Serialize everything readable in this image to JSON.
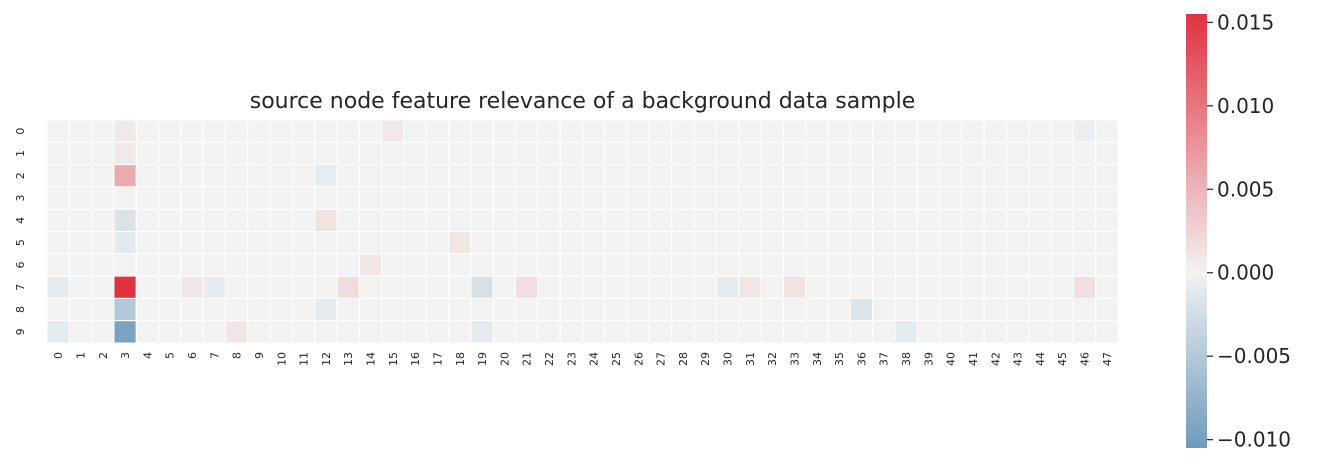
{
  "chart_data": {
    "type": "heatmap",
    "title": "source node feature relevance of a background data sample",
    "xlabel": "",
    "ylabel": "",
    "rows": [
      "0",
      "1",
      "2",
      "3",
      "4",
      "5",
      "6",
      "7",
      "8",
      "9"
    ],
    "columns": [
      "0",
      "1",
      "2",
      "3",
      "4",
      "5",
      "6",
      "7",
      "8",
      "9",
      "10",
      "11",
      "12",
      "13",
      "14",
      "15",
      "16",
      "17",
      "18",
      "19",
      "20",
      "21",
      "22",
      "23",
      "24",
      "25",
      "26",
      "27",
      "28",
      "29",
      "30",
      "31",
      "32",
      "33",
      "34",
      "35",
      "36",
      "37",
      "38",
      "39",
      "40",
      "41",
      "42",
      "43",
      "44",
      "45",
      "46",
      "47"
    ],
    "cells": [
      {
        "row": 0,
        "col": 3,
        "value": 0.0008
      },
      {
        "row": 0,
        "col": 15,
        "value": 0.0008
      },
      {
        "row": 0,
        "col": 46,
        "value": -0.0005
      },
      {
        "row": 1,
        "col": 3,
        "value": 0.0008
      },
      {
        "row": 2,
        "col": 3,
        "value": 0.0058
      },
      {
        "row": 2,
        "col": 12,
        "value": -0.0007
      },
      {
        "row": 4,
        "col": 3,
        "value": -0.0018
      },
      {
        "row": 4,
        "col": 12,
        "value": 0.0012
      },
      {
        "row": 5,
        "col": 3,
        "value": -0.0011
      },
      {
        "row": 5,
        "col": 18,
        "value": 0.001
      },
      {
        "row": 6,
        "col": 14,
        "value": 0.001
      },
      {
        "row": 7,
        "col": 0,
        "value": -0.0008
      },
      {
        "row": 7,
        "col": 3,
        "value": 0.0155
      },
      {
        "row": 7,
        "col": 6,
        "value": 0.001
      },
      {
        "row": 7,
        "col": 7,
        "value": -0.0008
      },
      {
        "row": 7,
        "col": 13,
        "value": 0.0018
      },
      {
        "row": 7,
        "col": 19,
        "value": -0.0022
      },
      {
        "row": 7,
        "col": 21,
        "value": 0.0016
      },
      {
        "row": 7,
        "col": 30,
        "value": -0.0008
      },
      {
        "row": 7,
        "col": 31,
        "value": 0.001
      },
      {
        "row": 7,
        "col": 33,
        "value": 0.0012
      },
      {
        "row": 7,
        "col": 46,
        "value": 0.0016
      },
      {
        "row": 8,
        "col": 3,
        "value": -0.005
      },
      {
        "row": 8,
        "col": 12,
        "value": -0.0008
      },
      {
        "row": 8,
        "col": 36,
        "value": -0.0016
      },
      {
        "row": 9,
        "col": 0,
        "value": -0.001
      },
      {
        "row": 9,
        "col": 3,
        "value": -0.0095
      },
      {
        "row": 9,
        "col": 8,
        "value": 0.001
      },
      {
        "row": 9,
        "col": 19,
        "value": -0.001
      },
      {
        "row": 9,
        "col": 38,
        "value": -0.001
      }
    ],
    "default_value": 0.0,
    "colorbar": {
      "min": -0.0105,
      "max": 0.0155,
      "ticks": [
        -0.01,
        -0.005,
        0.0,
        0.005,
        0.01,
        0.015
      ],
      "tick_labels": [
        "−0.010",
        "−0.005",
        "0.000",
        "0.005",
        "0.010",
        "0.015"
      ],
      "colormap": "diverging blue-light grey-red",
      "colors": {
        "negative": "#6d9bbd",
        "center": "#f2f2f2",
        "positive": "#e0323f"
      }
    },
    "grid": true
  }
}
